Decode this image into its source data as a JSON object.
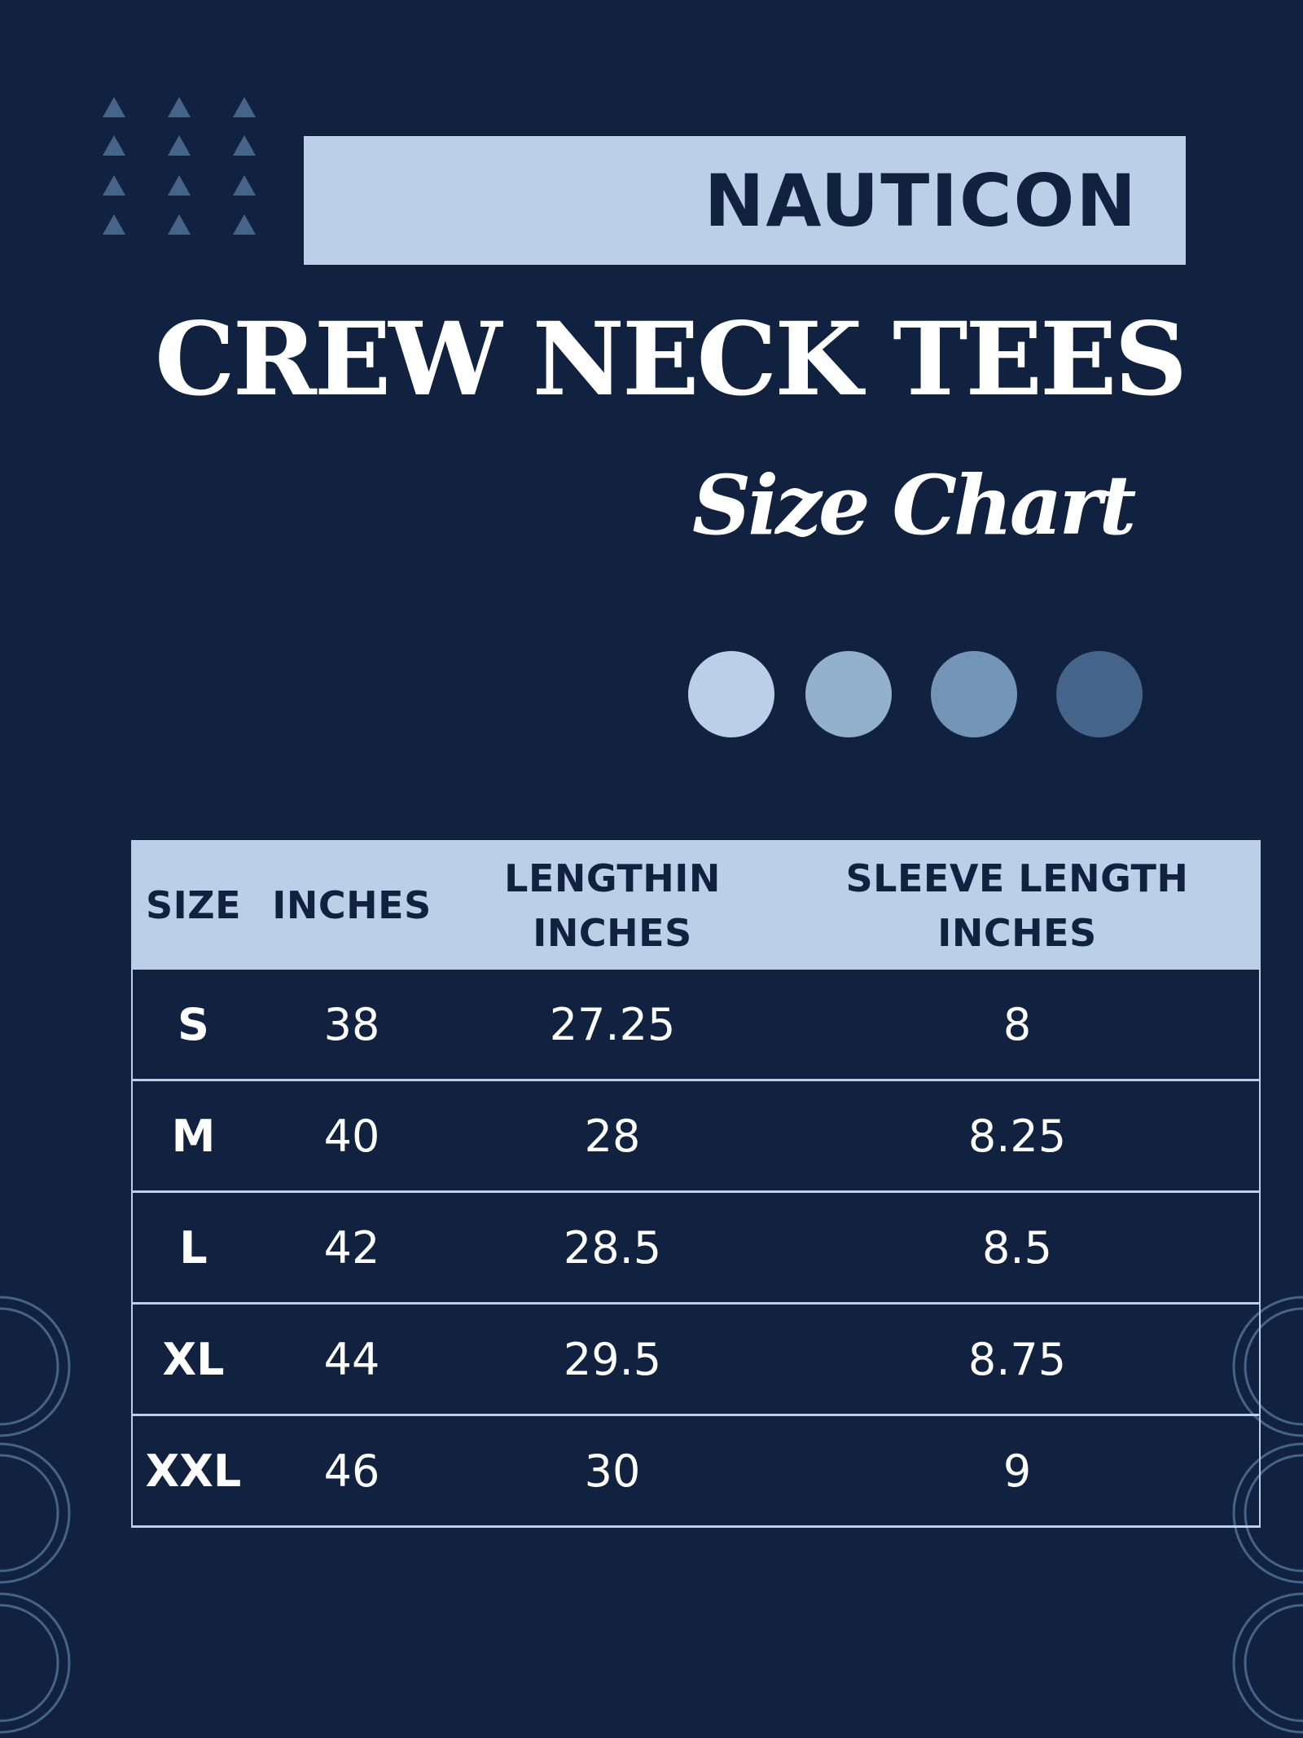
{
  "brand": "NAUTICON",
  "title": "CREW NECK TEES",
  "subtitle": "Size Chart",
  "colors": {
    "background": "#10223f",
    "accent_light": "#b9d0e6",
    "palette": [
      "#b9d0e6",
      "#93b1cc",
      "#7295b8",
      "#44648a"
    ]
  },
  "table": {
    "headers": [
      "SIZE",
      "INCHES",
      "LENGTHIN INCHES",
      "SLEEVE LENGTH INCHES"
    ],
    "rows": [
      [
        "S",
        "38",
        "27.25",
        "8"
      ],
      [
        "M",
        "40",
        "28",
        "8.25"
      ],
      [
        "L",
        "42",
        "28.5",
        "8.5"
      ],
      [
        "XL",
        "44",
        "29.5",
        "8.75"
      ],
      [
        "XXL",
        "46",
        "30",
        "9"
      ]
    ]
  }
}
